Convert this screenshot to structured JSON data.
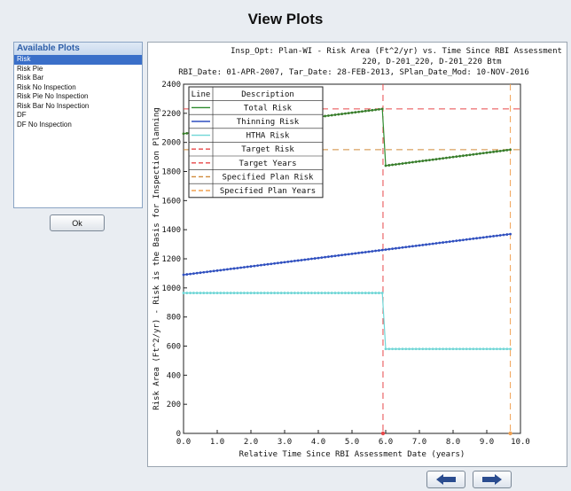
{
  "window": {
    "title": "View Plots"
  },
  "plots_panel": {
    "header": "Available Plots",
    "items": [
      {
        "label": "Risk",
        "selected": true
      },
      {
        "label": "Risk Pie",
        "selected": false
      },
      {
        "label": "Risk Bar",
        "selected": false
      },
      {
        "label": "Risk No Inspection",
        "selected": false
      },
      {
        "label": "Risk Pie No Inspection",
        "selected": false
      },
      {
        "label": "Risk Bar No Inspection",
        "selected": false
      },
      {
        "label": "DF",
        "selected": false
      },
      {
        "label": "DF No Inspection",
        "selected": false
      }
    ]
  },
  "buttons": {
    "ok_label": "Ok",
    "back_icon": "arrow-left-icon",
    "forward_icon": "arrow-right-icon"
  },
  "chart_data": {
    "type": "line",
    "title_lines": [
      "Insp_Opt: Plan-WI - Risk Area (Ft^2/yr) vs. Time Since RBI Assessment",
      "220, D-201_220, D-201_220 Btm",
      "RBI_Date: 01-APR-2007, Tar_Date: 28-FEB-2013, SPlan_Date_Mod: 10-NOV-2016"
    ],
    "xlabel": "Relative Time Since RBI Assessment Date (years)",
    "ylabel": "Risk Area (Ft^2/yr) - Risk is the Basis for Inspection Planning",
    "xlim": [
      0,
      10
    ],
    "ylim": [
      0,
      2400
    ],
    "x_ticks": [
      "0.0",
      "1.0",
      "2.0",
      "3.0",
      "4.0",
      "5.0",
      "6.0",
      "7.0",
      "8.0",
      "9.0",
      "10.0"
    ],
    "y_ticks": [
      "0",
      "200",
      "400",
      "600",
      "800",
      "1000",
      "1200",
      "1400",
      "1600",
      "1800",
      "2000",
      "2200",
      "2400"
    ],
    "grid": false,
    "legend_placement": "top-left",
    "legend_headers": [
      "Line",
      "Description"
    ],
    "legend": [
      {
        "name": "Total Risk",
        "color": "#2e8b2e",
        "dashed": false
      },
      {
        "name": "Thinning Risk",
        "color": "#2f4fbf",
        "dashed": false
      },
      {
        "name": "HTHA Risk",
        "color": "#6fd6d6",
        "dashed": false
      },
      {
        "name": "Target Risk",
        "color": "#e8474a",
        "dashed": true
      },
      {
        "name": "Target Years",
        "color": "#e8474a",
        "dashed": true
      },
      {
        "name": "Specified Plan Risk",
        "color": "#d08a3a",
        "dashed": true
      },
      {
        "name": "Specified Plan Years",
        "color": "#f0a050",
        "dashed": true
      }
    ],
    "series": [
      {
        "name": "Total Risk",
        "color": "#2e8b2e",
        "marker_color": "#3a7a2a",
        "segments": [
          [
            [
              0.0,
              2060
            ],
            [
              5.9,
              2230
            ]
          ],
          [
            [
              6.0,
              1840
            ],
            [
              9.7,
              1950
            ]
          ]
        ]
      },
      {
        "name": "Thinning Risk",
        "color": "#2f4fbf",
        "marker_color": "#2f4fbf",
        "segments": [
          [
            [
              0.0,
              1090
            ],
            [
              9.7,
              1370
            ]
          ]
        ]
      },
      {
        "name": "HTHA Risk",
        "color": "#6fd6d6",
        "marker_color": "#6fd6d6",
        "segments": [
          [
            [
              0.0,
              965
            ],
            [
              5.9,
              965
            ]
          ],
          [
            [
              6.0,
              580
            ],
            [
              9.7,
              580
            ]
          ]
        ]
      }
    ],
    "marker_step": 0.1,
    "reference_lines": [
      {
        "name": "Target Risk",
        "orientation": "horizontal",
        "value": 2230,
        "color": "#e8474a"
      },
      {
        "name": "Target Years",
        "orientation": "vertical",
        "value": 5.92,
        "color": "#e8474a"
      },
      {
        "name": "Specified Plan Risk",
        "orientation": "horizontal",
        "value": 1950,
        "color": "#d08a3a"
      },
      {
        "name": "Specified Plan Years",
        "orientation": "vertical",
        "value": 9.7,
        "color": "#f0a050"
      }
    ]
  }
}
